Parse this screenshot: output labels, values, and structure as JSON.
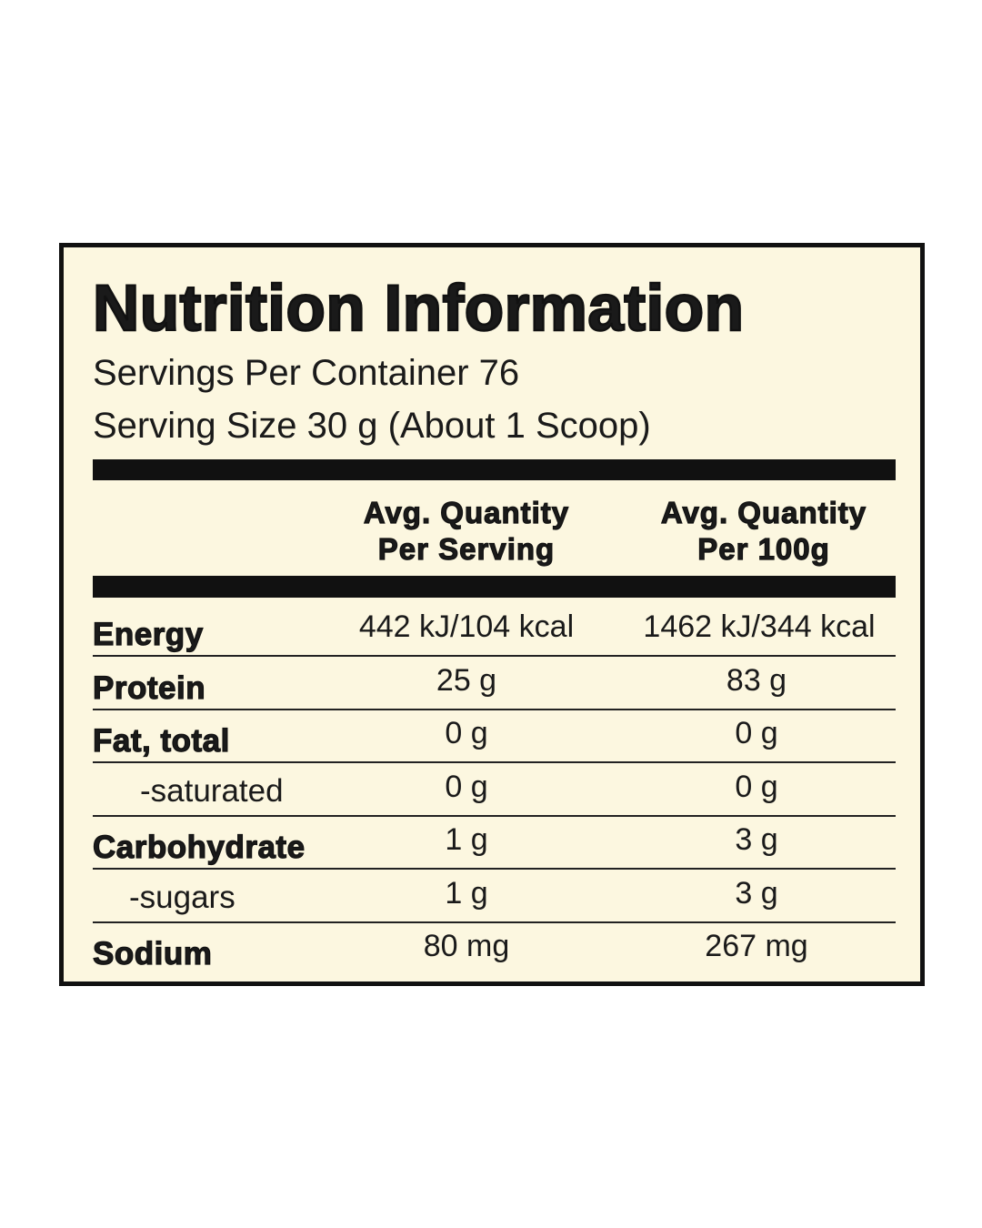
{
  "header": {
    "title": "Nutrition Information",
    "servings": "Servings Per Container 76",
    "serving_size": "Serving Size 30 g (About 1 Scoop)"
  },
  "table": {
    "columns": [
      [
        "Avg. Quantity",
        "Per Serving"
      ],
      [
        "Avg. Quantity",
        "Per 100g"
      ]
    ],
    "rows": [
      [
        "Energy",
        "442 kJ/104 kcal",
        "1462 kJ/344 kcal"
      ],
      [
        "Protein",
        "25 g",
        "83 g"
      ],
      [
        "Fat, total",
        "0 g",
        "0 g"
      ],
      [
        "-saturated",
        "0 g",
        "0 g"
      ],
      [
        "Carbohydrate",
        "1 g",
        "3 g"
      ],
      [
        "-sugars",
        "1 g",
        "3 g"
      ],
      [
        "Sodium",
        "80 mg",
        "267 mg"
      ]
    ]
  }
}
